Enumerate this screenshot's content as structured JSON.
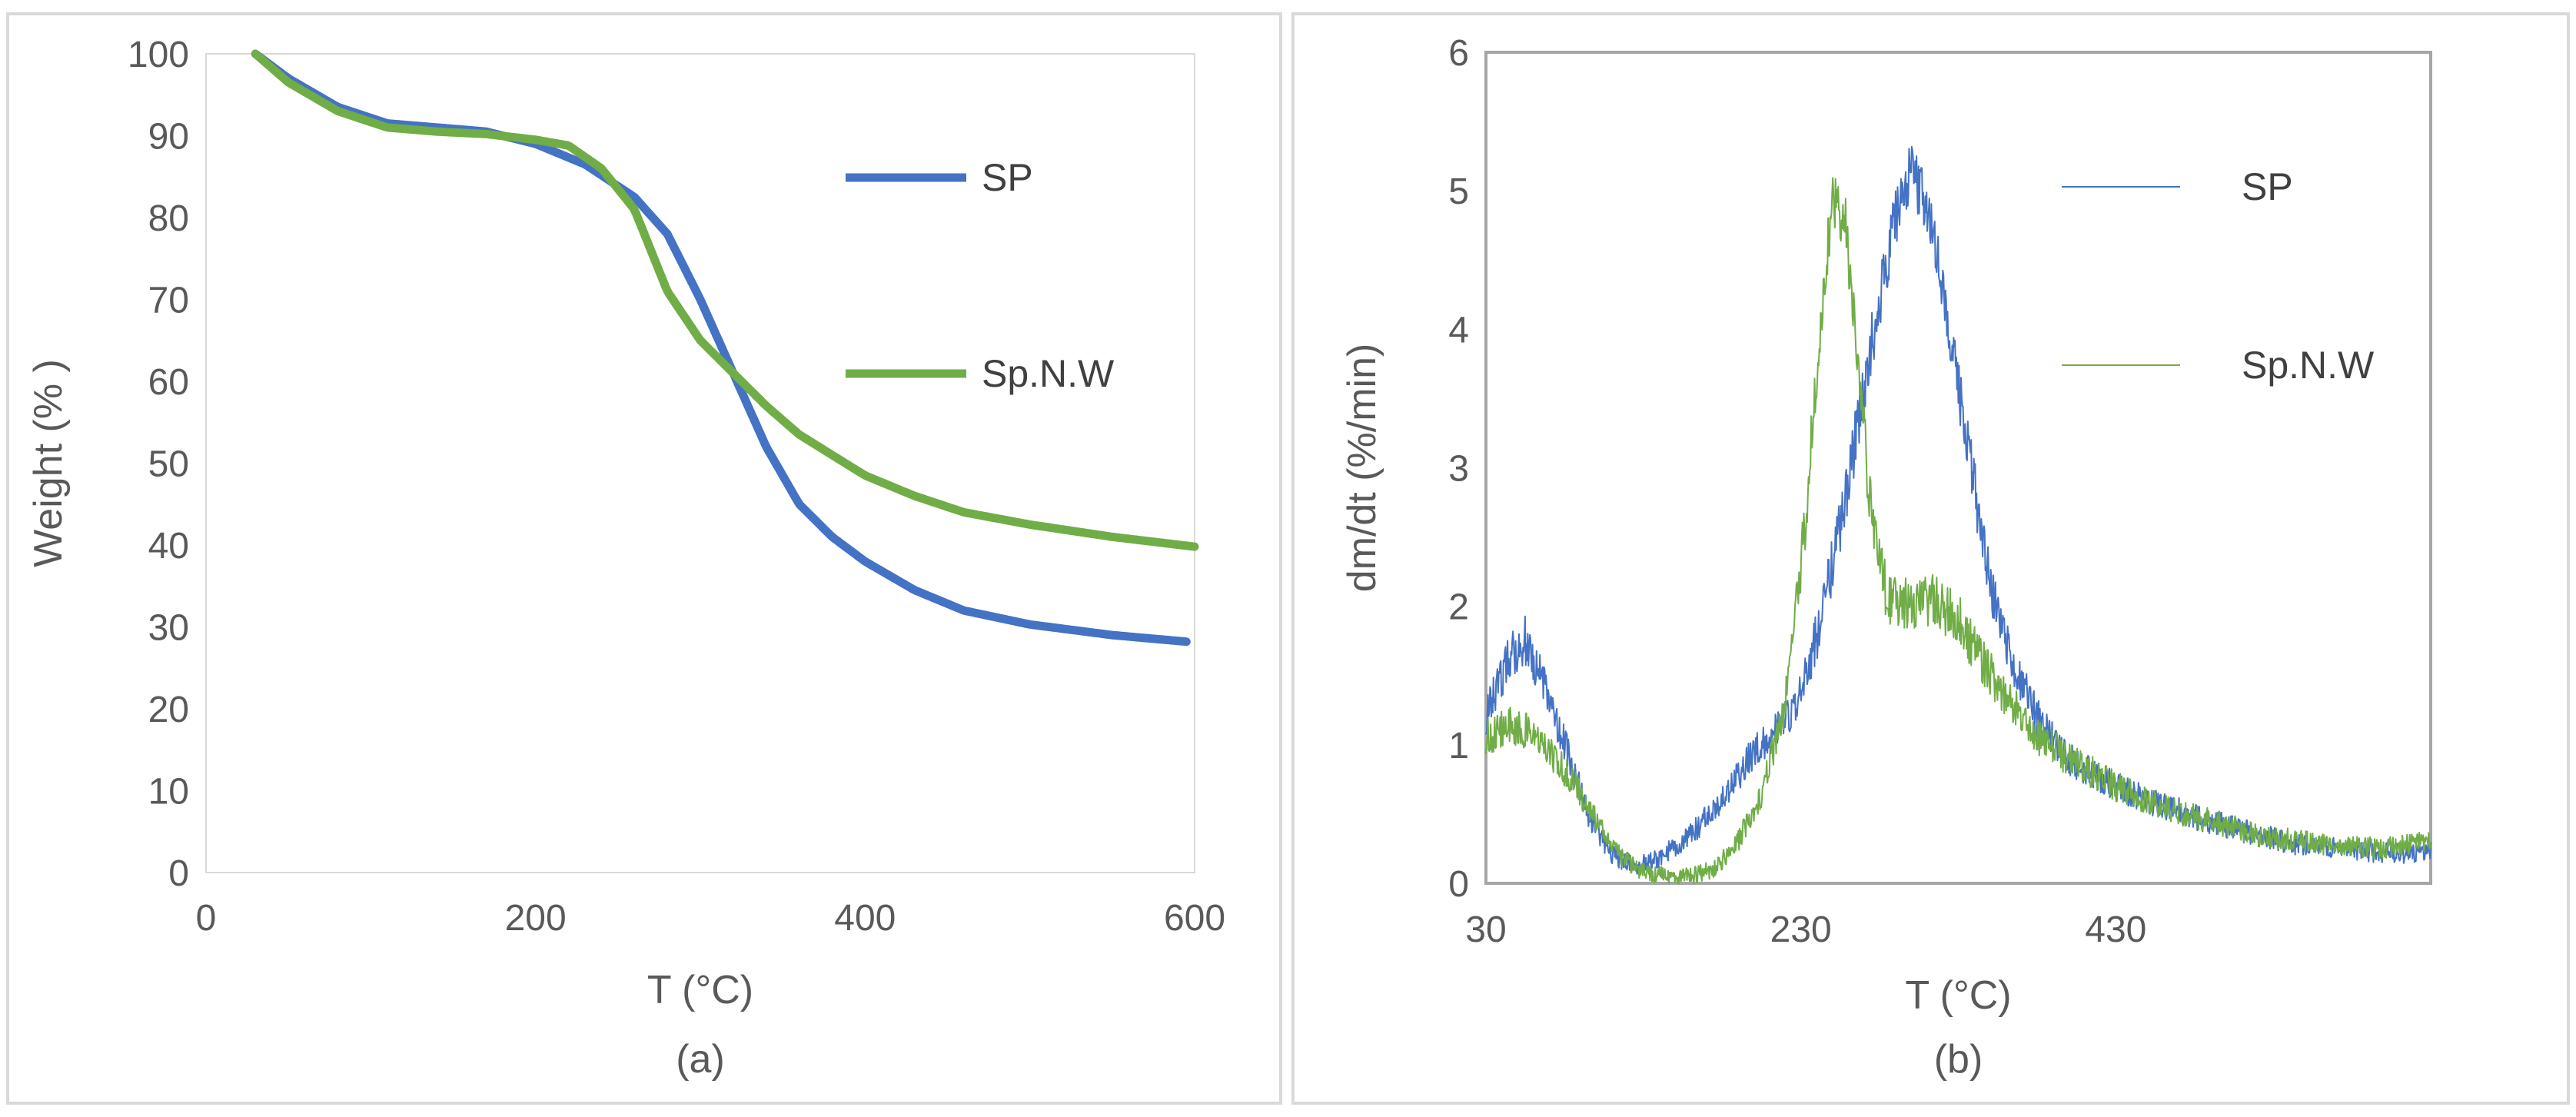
{
  "chart_data": [
    {
      "type": "line",
      "panel_label": "(a)",
      "xlabel": "T (°C)",
      "ylabel": "Weight (% )",
      "xlim": [
        0,
        600
      ],
      "ylim": [
        0,
        100
      ],
      "xticks": [
        0,
        200,
        400,
        600
      ],
      "yticks": [
        0,
        10,
        20,
        30,
        40,
        50,
        60,
        70,
        80,
        90,
        100
      ],
      "legend_position": "right",
      "series": [
        {
          "name": "SP",
          "color": "#4472C4",
          "points": [
            [
              30,
              100
            ],
            [
              50,
              97
            ],
            [
              80,
              93.5
            ],
            [
              110,
              91.5
            ],
            [
              140,
              91
            ],
            [
              170,
              90.5
            ],
            [
              200,
              89
            ],
            [
              230,
              86.5
            ],
            [
              260,
              82.5
            ],
            [
              280,
              78
            ],
            [
              300,
              70
            ],
            [
              320,
              61
            ],
            [
              340,
              52
            ],
            [
              360,
              45
            ],
            [
              380,
              41
            ],
            [
              400,
              38
            ],
            [
              430,
              34.5
            ],
            [
              460,
              32
            ],
            [
              500,
              30.3
            ],
            [
              550,
              29
            ],
            [
              595,
              28.2
            ]
          ]
        },
        {
          "name": "Sp.N.W",
          "color": "#70AD47",
          "points": [
            [
              30,
              100
            ],
            [
              50,
              96.5
            ],
            [
              80,
              93
            ],
            [
              110,
              91
            ],
            [
              140,
              90.5
            ],
            [
              170,
              90.2
            ],
            [
              200,
              89.5
            ],
            [
              220,
              88.8
            ],
            [
              240,
              86
            ],
            [
              260,
              81
            ],
            [
              280,
              71
            ],
            [
              300,
              65
            ],
            [
              320,
              61
            ],
            [
              340,
              57
            ],
            [
              360,
              53.5
            ],
            [
              380,
              51
            ],
            [
              400,
              48.5
            ],
            [
              430,
              46
            ],
            [
              460,
              44
            ],
            [
              500,
              42.5
            ],
            [
              550,
              41
            ],
            [
              600,
              39.8
            ]
          ]
        }
      ]
    },
    {
      "type": "line",
      "panel_label": "(b)",
      "xlabel": "T (°C)",
      "ylabel": "dm/dt (%/min)",
      "xlim": [
        30,
        630
      ],
      "ylim": [
        0,
        6
      ],
      "xticks": [
        30,
        230,
        430
      ],
      "yticks": [
        0,
        1,
        2,
        3,
        4,
        5,
        6
      ],
      "legend_position": "right",
      "series": [
        {
          "name": "SP",
          "color": "#4472C4",
          "points": [
            [
              30,
              1.2
            ],
            [
              45,
              1.65
            ],
            [
              55,
              1.75
            ],
            [
              65,
              1.5
            ],
            [
              80,
              1.0
            ],
            [
              95,
              0.5
            ],
            [
              110,
              0.2
            ],
            [
              125,
              0.12
            ],
            [
              140,
              0.18
            ],
            [
              160,
              0.35
            ],
            [
              180,
              0.6
            ],
            [
              200,
              0.95
            ],
            [
              215,
              1.1
            ],
            [
              230,
              1.35
            ],
            [
              245,
              2.0
            ],
            [
              260,
              2.9
            ],
            [
              275,
              3.9
            ],
            [
              290,
              4.8
            ],
            [
              300,
              5.15
            ],
            [
              310,
              4.9
            ],
            [
              320,
              4.3
            ],
            [
              335,
              3.2
            ],
            [
              350,
              2.2
            ],
            [
              365,
              1.6
            ],
            [
              380,
              1.2
            ],
            [
              400,
              0.9
            ],
            [
              420,
              0.75
            ],
            [
              450,
              0.6
            ],
            [
              480,
              0.48
            ],
            [
              510,
              0.38
            ],
            [
              545,
              0.28
            ],
            [
              570,
              0.25
            ],
            [
              600,
              0.22
            ],
            [
              630,
              0.22
            ]
          ]
        },
        {
          "name": "Sp.N.W",
          "color": "#70AD47",
          "points": [
            [
              30,
              1.05
            ],
            [
              45,
              1.15
            ],
            [
              55,
              1.1
            ],
            [
              70,
              0.95
            ],
            [
              85,
              0.75
            ],
            [
              100,
              0.45
            ],
            [
              115,
              0.2
            ],
            [
              130,
              0.08
            ],
            [
              145,
              0.05
            ],
            [
              160,
              0.05
            ],
            [
              175,
              0.1
            ],
            [
              190,
              0.3
            ],
            [
              205,
              0.65
            ],
            [
              220,
              1.3
            ],
            [
              232,
              2.5
            ],
            [
              242,
              4.0
            ],
            [
              250,
              4.95
            ],
            [
              258,
              4.8
            ],
            [
              266,
              3.8
            ],
            [
              275,
              2.6
            ],
            [
              285,
              2.05
            ],
            [
              300,
              2.0
            ],
            [
              315,
              2.05
            ],
            [
              330,
              1.9
            ],
            [
              345,
              1.6
            ],
            [
              360,
              1.35
            ],
            [
              380,
              1.05
            ],
            [
              400,
              0.9
            ],
            [
              430,
              0.7
            ],
            [
              460,
              0.55
            ],
            [
              490,
              0.45
            ],
            [
              520,
              0.35
            ],
            [
              560,
              0.28
            ],
            [
              600,
              0.25
            ],
            [
              630,
              0.3
            ]
          ]
        }
      ]
    }
  ]
}
